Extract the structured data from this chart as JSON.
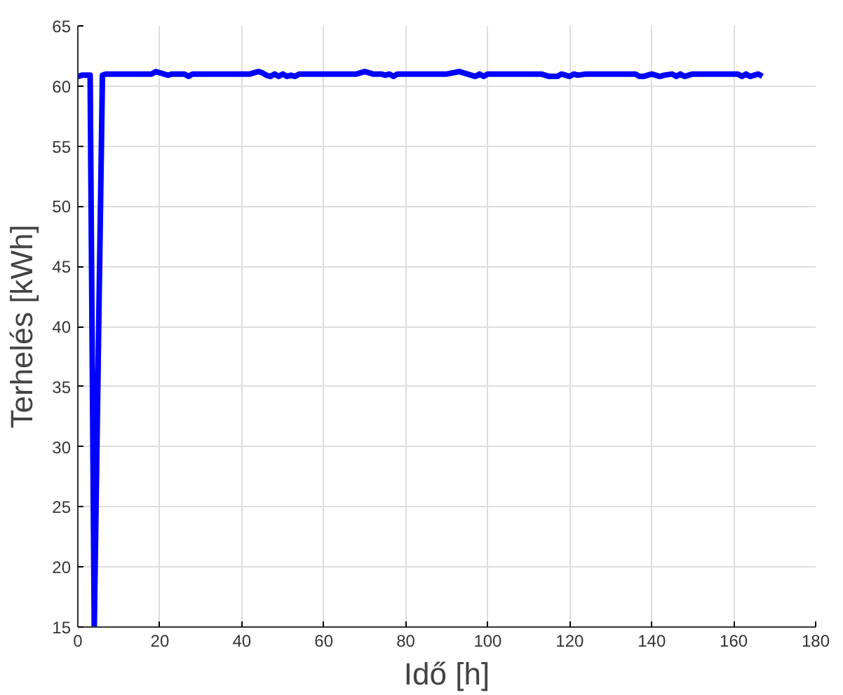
{
  "chart_data": {
    "type": "line",
    "xlabel": "Idő [h]",
    "ylabel": "Terhelés [kWh]",
    "x": [
      0,
      1,
      2,
      3,
      4,
      6,
      7,
      10,
      18,
      19,
      20,
      21,
      22,
      23,
      25,
      26,
      27,
      28,
      30,
      42,
      44,
      45,
      46,
      47,
      48,
      49,
      50,
      51,
      52,
      53,
      54,
      55,
      60,
      68,
      70,
      72,
      74,
      75,
      76,
      77,
      78,
      90,
      93,
      95,
      96,
      97,
      98,
      99,
      100,
      101,
      102,
      110,
      113,
      114,
      115,
      117,
      118,
      120,
      121,
      122,
      124,
      126,
      130,
      136,
      137,
      138,
      140,
      141,
      142,
      143,
      145,
      146,
      147,
      148,
      150,
      155,
      160,
      161,
      162,
      163,
      164,
      165,
      166,
      167
    ],
    "series": [
      {
        "color": "#0000ff",
        "values": [
          60.8,
          60.9,
          60.9,
          60.9,
          15,
          60.9,
          61.0,
          61.0,
          61.0,
          61.2,
          61.1,
          61.0,
          60.9,
          61.0,
          61.0,
          61.0,
          60.8,
          61.0,
          61.0,
          61.0,
          61.2,
          61.1,
          60.9,
          60.8,
          61.0,
          60.8,
          61.0,
          60.8,
          60.9,
          60.8,
          61.0,
          61.0,
          61.0,
          61.0,
          61.2,
          61.0,
          61.0,
          60.9,
          61.0,
          60.8,
          61.0,
          61.0,
          61.2,
          61.0,
          60.9,
          60.8,
          61.0,
          60.8,
          61.0,
          61.0,
          61.0,
          61.0,
          61.0,
          60.9,
          60.8,
          60.8,
          61.0,
          60.8,
          61.0,
          60.9,
          61.0,
          61.0,
          61.0,
          61.0,
          60.8,
          60.8,
          61.0,
          60.9,
          60.8,
          60.9,
          61.0,
          60.8,
          61.0,
          60.8,
          61.0,
          61.0,
          61.0,
          61.0,
          60.8,
          61.0,
          60.8,
          60.9,
          61.0,
          60.8
        ]
      }
    ],
    "xlim": [
      0,
      180
    ],
    "xticks": [
      0,
      20,
      40,
      60,
      80,
      100,
      120,
      140,
      160,
      180
    ],
    "ylim": [
      15,
      65
    ],
    "yticks": [
      15,
      20,
      25,
      30,
      35,
      40,
      45,
      50,
      55,
      60,
      65
    ],
    "grid": true,
    "marker": "none",
    "line_style": "solid"
  }
}
